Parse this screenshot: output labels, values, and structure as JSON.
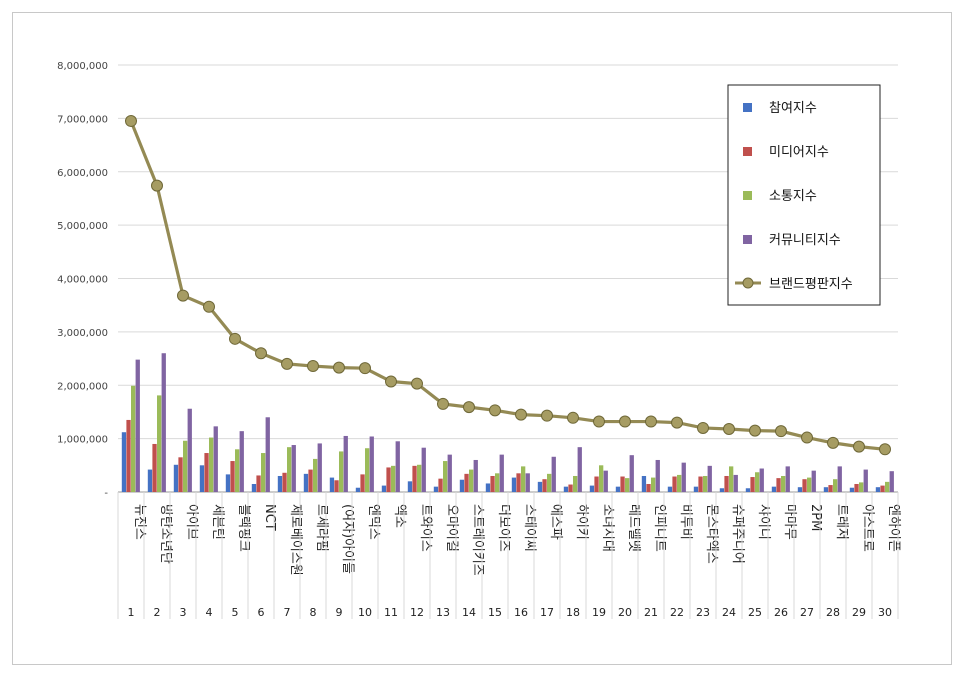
{
  "chart_data": {
    "type": "bar",
    "title": "",
    "xlabel": "",
    "ylabel": "",
    "ylim": [
      0,
      8000000
    ],
    "yticks": [
      "-",
      "1,000,000",
      "2,000,000",
      "3,000,000",
      "4,000,000",
      "5,000,000",
      "6,000,000",
      "7,000,000",
      "8,000,000"
    ],
    "legend_position": "top-right",
    "grid": true,
    "categories": [
      "뉴진스",
      "방탄소년단",
      "아이브",
      "세븐틴",
      "블랙핑크",
      "NCT",
      "제로베이스원",
      "르세라핌",
      "(여자)아이들",
      "엔믹스",
      "엑소",
      "트와이스",
      "오마이걸",
      "스트레이키즈",
      "더보이즈",
      "스테이씨",
      "에스파",
      "하이키",
      "소녀시대",
      "레드벨벳",
      "인피니트",
      "비투비",
      "몬스타엑스",
      "슈퍼주니어",
      "샤이니",
      "마마무",
      "2PM",
      "트레저",
      "아스트로",
      "엔하이픈"
    ],
    "ranks": [
      "1",
      "2",
      "3",
      "4",
      "5",
      "6",
      "7",
      "8",
      "9",
      "10",
      "11",
      "12",
      "13",
      "14",
      "15",
      "16",
      "17",
      "18",
      "19",
      "20",
      "21",
      "22",
      "23",
      "24",
      "25",
      "26",
      "27",
      "28",
      "29",
      "30"
    ],
    "series": [
      {
        "name": "참여지수",
        "type": "bar",
        "color": "#4472c4",
        "values": [
          1120000,
          420000,
          510000,
          500000,
          330000,
          150000,
          300000,
          340000,
          270000,
          80000,
          120000,
          200000,
          100000,
          230000,
          160000,
          270000,
          190000,
          100000,
          120000,
          100000,
          300000,
          100000,
          100000,
          70000,
          70000,
          100000,
          90000,
          90000,
          80000,
          90000
        ]
      },
      {
        "name": "미디어지수",
        "type": "bar",
        "color": "#c0504d",
        "values": [
          1350000,
          900000,
          650000,
          730000,
          580000,
          310000,
          360000,
          420000,
          220000,
          330000,
          460000,
          490000,
          250000,
          340000,
          300000,
          350000,
          240000,
          140000,
          290000,
          290000,
          150000,
          290000,
          290000,
          300000,
          280000,
          260000,
          240000,
          130000,
          150000,
          120000
        ]
      },
      {
        "name": "소통지수",
        "type": "bar",
        "color": "#9bbb59",
        "values": [
          1990000,
          1810000,
          960000,
          1020000,
          800000,
          730000,
          840000,
          620000,
          760000,
          820000,
          490000,
          510000,
          580000,
          420000,
          350000,
          480000,
          340000,
          300000,
          500000,
          260000,
          270000,
          320000,
          300000,
          480000,
          370000,
          300000,
          270000,
          240000,
          180000,
          190000
        ]
      },
      {
        "name": "커뮤니티지수",
        "type": "bar",
        "color": "#8064a2",
        "values": [
          2480000,
          2600000,
          1560000,
          1230000,
          1140000,
          1400000,
          880000,
          910000,
          1050000,
          1040000,
          950000,
          830000,
          700000,
          600000,
          700000,
          350000,
          660000,
          840000,
          400000,
          690000,
          600000,
          550000,
          490000,
          320000,
          440000,
          480000,
          400000,
          480000,
          420000,
          390000
        ]
      },
      {
        "name": "브랜드평판지수",
        "type": "line",
        "color": "#948a54",
        "values": [
          6950000,
          5740000,
          3680000,
          3470000,
          2870000,
          2600000,
          2400000,
          2360000,
          2330000,
          2320000,
          2070000,
          2030000,
          1650000,
          1590000,
          1530000,
          1450000,
          1430000,
          1390000,
          1320000,
          1320000,
          1320000,
          1300000,
          1200000,
          1180000,
          1150000,
          1140000,
          1020000,
          920000,
          850000,
          800000
        ]
      }
    ]
  }
}
